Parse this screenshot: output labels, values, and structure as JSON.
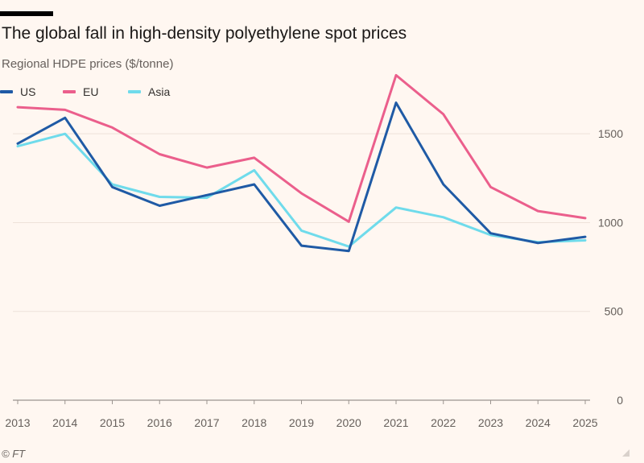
{
  "header": {
    "title": "The global fall in high-density polyethylene spot prices",
    "subtitle": "Regional HDPE prices ($/tonne)"
  },
  "legend": [
    {
      "name": "US",
      "color": "#1f5aa5"
    },
    {
      "name": "EU",
      "color": "#eb5f8c"
    },
    {
      "name": "Asia",
      "color": "#6fdbeb"
    }
  ],
  "footer": {
    "source": "© FT"
  },
  "chart_data": {
    "type": "line",
    "title": "The global fall in high-density polyethylene spot prices",
    "subtitle": "Regional HDPE prices ($/tonne)",
    "xlabel": "",
    "ylabel": "",
    "categories": [
      "2013",
      "2014",
      "2015",
      "2016",
      "2017",
      "2018",
      "2019",
      "2020",
      "2021",
      "2022",
      "2023",
      "2024",
      "2025"
    ],
    "ylim": [
      0,
      1800
    ],
    "yticks": [
      0,
      500,
      1000,
      1500
    ],
    "grid": true,
    "legend_position": "top-left",
    "series": [
      {
        "name": "US",
        "color": "#1f5aa5",
        "values": [
          1445,
          1590,
          1200,
          1095,
          1155,
          1215,
          870,
          840,
          1675,
          1215,
          940,
          885,
          920
        ]
      },
      {
        "name": "EU",
        "color": "#eb5f8c",
        "values": [
          1650,
          1635,
          1535,
          1385,
          1310,
          1365,
          1165,
          1005,
          1830,
          1610,
          1200,
          1065,
          1025
        ]
      },
      {
        "name": "Asia",
        "color": "#6fdbeb",
        "values": [
          1430,
          1500,
          1215,
          1145,
          1140,
          1295,
          955,
          865,
          1085,
          1030,
          930,
          890,
          900
        ]
      }
    ]
  }
}
